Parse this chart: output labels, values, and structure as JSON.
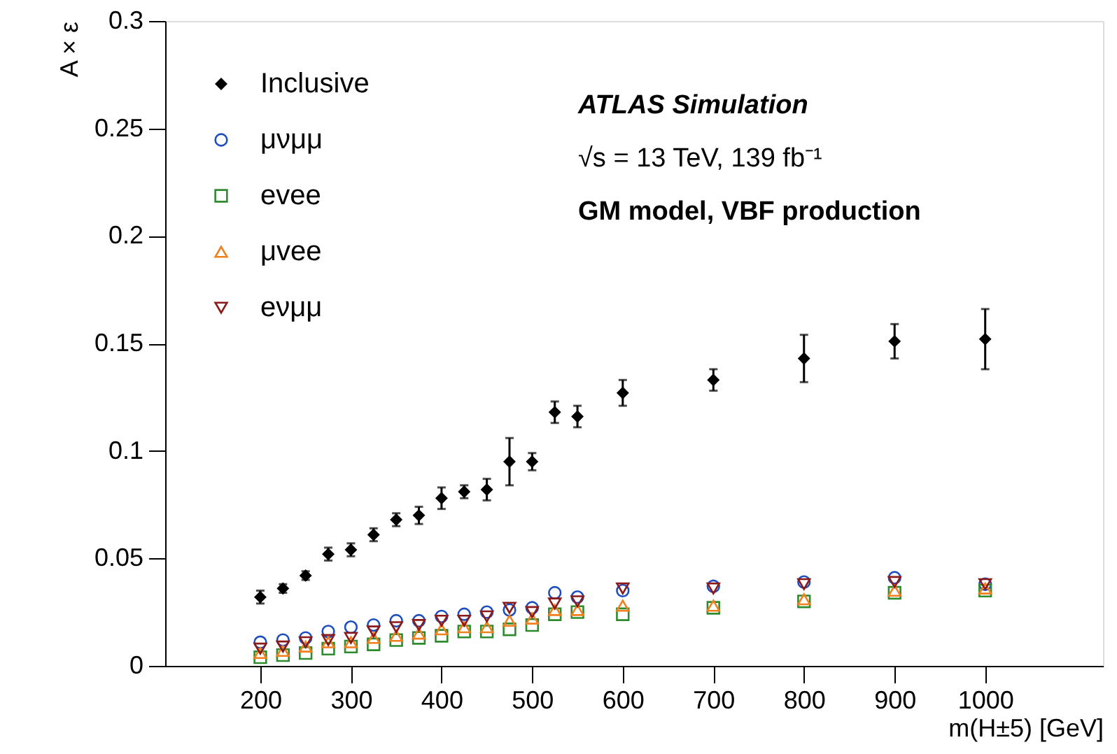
{
  "chart_data": {
    "type": "scatter",
    "xlabel": "m(H±5) [GeV]",
    "ylabel": "A × ε",
    "annotations": [
      "ATLAS Simulation",
      "√s = 13 TeV, 139 fb⁻¹",
      "GM model, VBF production"
    ],
    "xlim": [
      95,
      1130
    ],
    "xticks": [
      200,
      300,
      400,
      500,
      600,
      700,
      800,
      900,
      1000
    ],
    "ylim": [
      0,
      0.3
    ],
    "yticks": [
      0,
      0.05,
      0.1,
      0.15,
      0.2,
      0.25,
      0.3
    ],
    "grid": false,
    "legend": "top left",
    "x": [
      200,
      225,
      250,
      275,
      300,
      325,
      350,
      375,
      400,
      425,
      450,
      475,
      500,
      525,
      550,
      600,
      700,
      800,
      900,
      1000
    ],
    "series": [
      {
        "name": "Inclusive",
        "color": "#000000",
        "marker": "diamond",
        "values": [
          0.032,
          0.036,
          0.042,
          0.052,
          0.054,
          0.061,
          0.068,
          0.07,
          0.078,
          0.081,
          0.082,
          0.095,
          0.095,
          0.118,
          0.116,
          0.127,
          0.133,
          0.143,
          0.151,
          0.152
        ],
        "errors": [
          0.003,
          0.002,
          0.002,
          0.003,
          0.003,
          0.003,
          0.003,
          0.004,
          0.005,
          0.003,
          0.005,
          0.011,
          0.004,
          0.005,
          0.005,
          0.006,
          0.005,
          0.011,
          0.008,
          0.014
        ]
      },
      {
        "name": "μνμμ",
        "color": "#1f4fbf",
        "marker": "circle",
        "values": [
          0.011,
          0.012,
          0.013,
          0.016,
          0.018,
          0.019,
          0.021,
          0.021,
          0.023,
          0.024,
          0.025,
          0.026,
          0.027,
          0.034,
          0.032,
          0.035,
          0.037,
          0.039,
          0.041,
          0.038
        ]
      },
      {
        "name": "evee",
        "color": "#2e8b2e",
        "marker": "square",
        "values": [
          0.004,
          0.005,
          0.006,
          0.008,
          0.009,
          0.01,
          0.012,
          0.013,
          0.014,
          0.016,
          0.016,
          0.017,
          0.019,
          0.024,
          0.025,
          0.024,
          0.027,
          0.03,
          0.034,
          0.035
        ]
      },
      {
        "name": "μvee",
        "color": "#f07f1e",
        "marker": "triangle",
        "values": [
          0.006,
          0.007,
          0.009,
          0.011,
          0.011,
          0.013,
          0.014,
          0.015,
          0.017,
          0.018,
          0.018,
          0.021,
          0.022,
          0.026,
          0.026,
          0.028,
          0.028,
          0.031,
          0.035,
          0.036
        ]
      },
      {
        "name": "eνμμ",
        "color": "#8b1a1a",
        "marker": "triangle-down",
        "values": [
          0.008,
          0.009,
          0.011,
          0.012,
          0.013,
          0.016,
          0.018,
          0.019,
          0.021,
          0.021,
          0.023,
          0.027,
          0.025,
          0.029,
          0.03,
          0.036,
          0.036,
          0.038,
          0.039,
          0.038
        ]
      }
    ]
  }
}
